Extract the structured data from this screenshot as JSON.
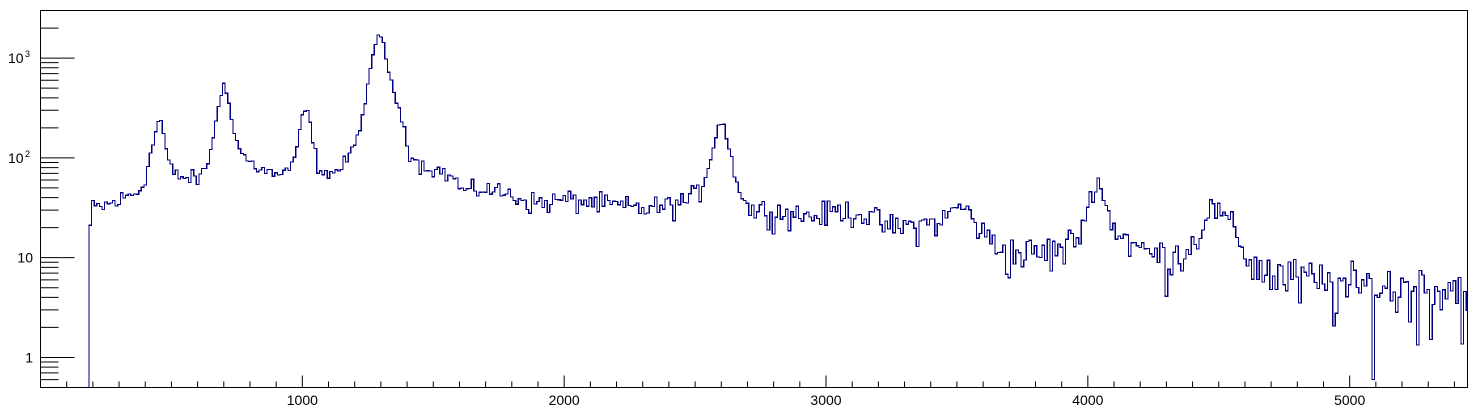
{
  "chart_data": {
    "type": "line",
    "style": "step-histogram",
    "title": "",
    "xlabel": "",
    "ylabel": "",
    "xlim": [
      0,
      5450
    ],
    "ylim": [
      0.5,
      3000
    ],
    "yscale": "log",
    "grid": false,
    "line_color": "#000080",
    "x_major_ticks": [
      "1000",
      "2000",
      "3000",
      "4000",
      "5000"
    ],
    "y_major_ticks": [
      {
        "base": "1",
        "exp": ""
      },
      {
        "base": "10",
        "exp": ""
      },
      {
        "base": "10",
        "exp": "2"
      },
      {
        "base": "10",
        "exp": "3"
      }
    ],
    "histogram": {
      "bin_width": 10,
      "x_start": 185,
      "x_end": 5450,
      "lower_limit": 0.5,
      "shape_points": [
        [
          185,
          14
        ],
        [
          195,
          30
        ],
        [
          230,
          32
        ],
        [
          300,
          37
        ],
        [
          340,
          42
        ],
        [
          380,
          48
        ],
        [
          400,
          65
        ],
        [
          425,
          120
        ],
        [
          445,
          210
        ],
        [
          455,
          260
        ],
        [
          465,
          210
        ],
        [
          485,
          100
        ],
        [
          505,
          70
        ],
        [
          560,
          62
        ],
        [
          610,
          63
        ],
        [
          640,
          90
        ],
        [
          665,
          200
        ],
        [
          690,
          420
        ],
        [
          700,
          560
        ],
        [
          720,
          380
        ],
        [
          740,
          170
        ],
        [
          770,
          110
        ],
        [
          800,
          90
        ],
        [
          850,
          75
        ],
        [
          900,
          68
        ],
        [
          950,
          70
        ],
        [
          975,
          110
        ],
        [
          995,
          220
        ],
        [
          1010,
          320
        ],
        [
          1025,
          270
        ],
        [
          1040,
          140
        ],
        [
          1060,
          85
        ],
        [
          1100,
          68
        ],
        [
          1150,
          80
        ],
        [
          1200,
          130
        ],
        [
          1235,
          300
        ],
        [
          1265,
          900
        ],
        [
          1285,
          1600
        ],
        [
          1295,
          1750
        ],
        [
          1310,
          1450
        ],
        [
          1330,
          700
        ],
        [
          1360,
          370
        ],
        [
          1385,
          230
        ],
        [
          1410,
          110
        ],
        [
          1450,
          85
        ],
        [
          1520,
          75
        ],
        [
          1580,
          62
        ],
        [
          1620,
          45
        ],
        [
          1700,
          50
        ],
        [
          1800,
          42
        ],
        [
          1900,
          35
        ],
        [
          2000,
          38
        ],
        [
          2100,
          36
        ],
        [
          2200,
          33
        ],
        [
          2300,
          31
        ],
        [
          2400,
          33
        ],
        [
          2470,
          38
        ],
        [
          2520,
          47
        ],
        [
          2555,
          90
        ],
        [
          2580,
          170
        ],
        [
          2595,
          230
        ],
        [
          2610,
          220
        ],
        [
          2630,
          120
        ],
        [
          2660,
          60
        ],
        [
          2690,
          37
        ],
        [
          2710,
          30
        ],
        [
          2760,
          30
        ],
        [
          2850,
          28
        ],
        [
          2950,
          26
        ],
        [
          3050,
          30
        ],
        [
          3150,
          27
        ],
        [
          3250,
          20
        ],
        [
          3350,
          21
        ],
        [
          3450,
          24
        ],
        [
          3500,
          33
        ],
        [
          3530,
          31
        ],
        [
          3560,
          26
        ],
        [
          3600,
          17
        ],
        [
          3700,
          11
        ],
        [
          3800,
          11
        ],
        [
          3900,
          12
        ],
        [
          3960,
          16
        ],
        [
          4000,
          30
        ],
        [
          4020,
          50
        ],
        [
          4040,
          62
        ],
        [
          4060,
          38
        ],
        [
          4100,
          20
        ],
        [
          4200,
          12
        ],
        [
          4300,
          10
        ],
        [
          4400,
          13
        ],
        [
          4440,
          22
        ],
        [
          4470,
          33
        ],
        [
          4500,
          28
        ],
        [
          4540,
          23
        ],
        [
          4580,
          15
        ],
        [
          4620,
          9
        ],
        [
          4700,
          7
        ],
        [
          4800,
          6
        ],
        [
          5000,
          5
        ],
        [
          5200,
          5
        ],
        [
          5450,
          5
        ]
      ],
      "overrides": [
        {
          "x": 2735,
          "value": 4
        },
        {
          "x": 2745,
          "value": 1
        },
        {
          "x": 4755,
          "value": 0
        },
        {
          "x": 4785,
          "value": 0
        },
        {
          "x": 4815,
          "value": 0
        },
        {
          "x": 4845,
          "value": 0
        },
        {
          "x": 4875,
          "value": 1
        },
        {
          "x": 4915,
          "value": 0
        },
        {
          "x": 5035,
          "value": 1
        },
        {
          "x": 5115,
          "value": 1
        },
        {
          "x": 5195,
          "value": 0
        },
        {
          "x": 5215,
          "value": 0
        },
        {
          "x": 5295,
          "value": 1
        },
        {
          "x": 5365,
          "value": 1
        },
        {
          "x": 5425,
          "value": 1
        }
      ]
    }
  }
}
